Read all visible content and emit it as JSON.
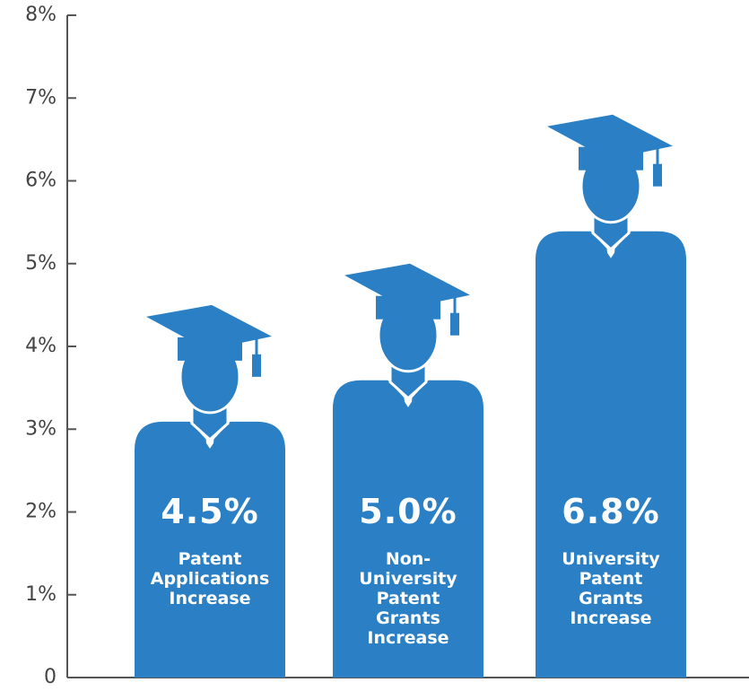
{
  "chart_data": {
    "type": "bar",
    "categories": [
      "Patent\nApplications\nIncrease",
      "Non-\nUniversity\nPatent\nGrants\nIncrease",
      "University\nPatent\nGrants\nIncrease"
    ],
    "values": [
      4.5,
      5.0,
      6.8
    ],
    "value_labels": [
      "4.5%",
      "5.0%",
      "6.8%"
    ],
    "color": "#2b80c5",
    "ylim": [
      0,
      8
    ],
    "yticks": [
      0,
      {
        "value": 1,
        "label": "1%"
      },
      {
        "value": 2,
        "label": "2%"
      },
      {
        "value": 3,
        "label": "3%"
      },
      {
        "value": 4,
        "label": "4%"
      },
      {
        "value": 5,
        "label": "5%"
      },
      {
        "value": 6,
        "label": "6%"
      },
      {
        "value": 7,
        "label": "7%"
      },
      {
        "value": 8,
        "label": "8%"
      }
    ]
  }
}
